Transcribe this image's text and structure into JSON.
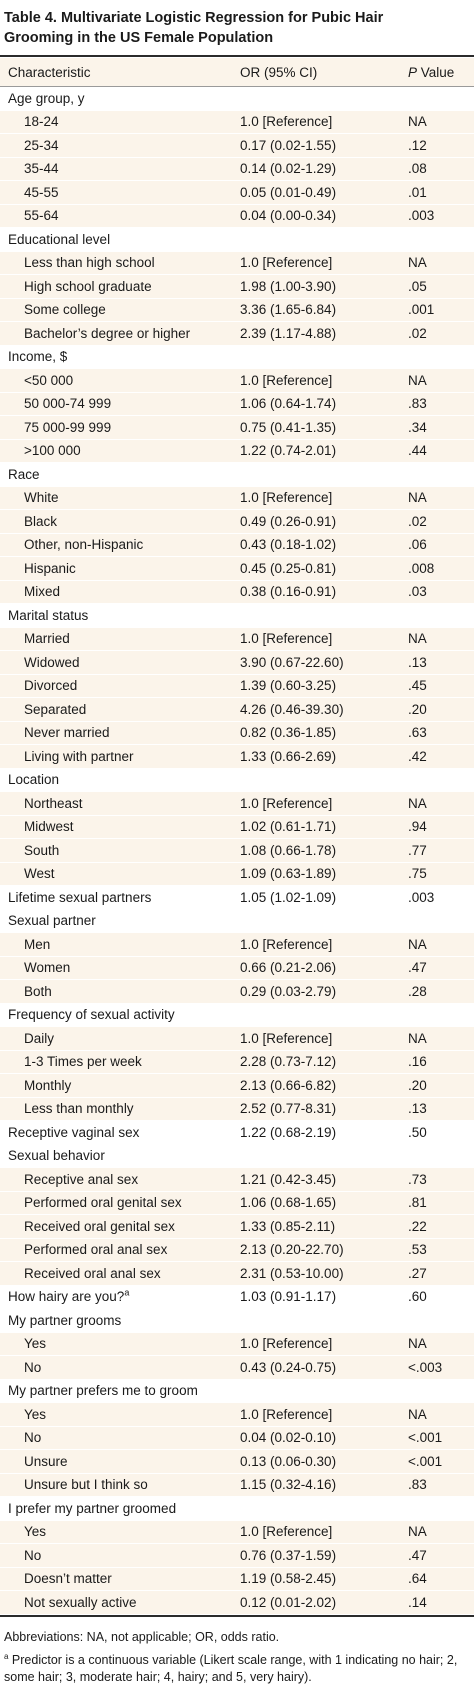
{
  "title": "Table 4. Multivariate Logistic Regression for Pubic Hair Grooming in the US Female Population",
  "headers": {
    "characteristic": "Characteristic",
    "or_ci": "OR (95% CI)",
    "p_italic": "P",
    "p_rest": " Value"
  },
  "rows": [
    {
      "type": "group",
      "label": "Age group, y",
      "or": "",
      "p": ""
    },
    {
      "type": "sub",
      "label": "18-24",
      "or": "1.0 [Reference]",
      "p": "NA"
    },
    {
      "type": "sub",
      "label": "25-34",
      "or": "0.17 (0.02-1.55)",
      "p": ".12"
    },
    {
      "type": "sub",
      "label": "35-44",
      "or": "0.14 (0.02-1.29)",
      "p": ".08"
    },
    {
      "type": "sub",
      "label": "45-55",
      "or": "0.05 (0.01-0.49)",
      "p": ".01"
    },
    {
      "type": "sub",
      "label": "55-64",
      "or": "0.04 (0.00-0.34)",
      "p": ".003"
    },
    {
      "type": "group",
      "label": "Educational level",
      "or": "",
      "p": ""
    },
    {
      "type": "sub",
      "label": "Less than high school",
      "or": "1.0 [Reference]",
      "p": "NA"
    },
    {
      "type": "sub",
      "label": "High school graduate",
      "or": "1.98 (1.00-3.90)",
      "p": ".05"
    },
    {
      "type": "sub",
      "label": "Some college",
      "or": "3.36 (1.65-6.84)",
      "p": ".001"
    },
    {
      "type": "sub",
      "label": "Bachelor’s degree or higher",
      "or": "2.39 (1.17-4.88)",
      "p": ".02"
    },
    {
      "type": "group",
      "label": "Income, $",
      "or": "",
      "p": ""
    },
    {
      "type": "sub",
      "label": "<50 000",
      "or": "1.0 [Reference]",
      "p": "NA"
    },
    {
      "type": "sub",
      "label": "50 000-74 999",
      "or": "1.06 (0.64-1.74)",
      "p": ".83"
    },
    {
      "type": "sub",
      "label": "75 000-99 999",
      "or": "0.75 (0.41-1.35)",
      "p": ".34"
    },
    {
      "type": "sub",
      "label": ">100 000",
      "or": "1.22 (0.74-2.01)",
      "p": ".44"
    },
    {
      "type": "group",
      "label": "Race",
      "or": "",
      "p": ""
    },
    {
      "type": "sub",
      "label": "White",
      "or": "1.0 [Reference]",
      "p": "NA"
    },
    {
      "type": "sub",
      "label": "Black",
      "or": "0.49 (0.26-0.91)",
      "p": ".02"
    },
    {
      "type": "sub",
      "label": "Other, non-Hispanic",
      "or": "0.43 (0.18-1.02)",
      "p": ".06"
    },
    {
      "type": "sub",
      "label": "Hispanic",
      "or": "0.45 (0.25-0.81)",
      "p": ".008"
    },
    {
      "type": "sub",
      "label": "Mixed",
      "or": "0.38 (0.16-0.91)",
      "p": ".03"
    },
    {
      "type": "group",
      "label": "Marital status",
      "or": "",
      "p": ""
    },
    {
      "type": "sub",
      "label": "Married",
      "or": "1.0 [Reference]",
      "p": "NA"
    },
    {
      "type": "sub",
      "label": "Widowed",
      "or": "3.90 (0.67-22.60)",
      "p": ".13"
    },
    {
      "type": "sub",
      "label": "Divorced",
      "or": "1.39 (0.60-3.25)",
      "p": ".45"
    },
    {
      "type": "sub",
      "label": "Separated",
      "or": "4.26 (0.46-39.30)",
      "p": ".20"
    },
    {
      "type": "sub",
      "label": "Never married",
      "or": "0.82 (0.36-1.85)",
      "p": ".63"
    },
    {
      "type": "sub",
      "label": "Living with partner",
      "or": "1.33 (0.66-2.69)",
      "p": ".42"
    },
    {
      "type": "group",
      "label": "Location",
      "or": "",
      "p": ""
    },
    {
      "type": "sub",
      "label": "Northeast",
      "or": "1.0 [Reference]",
      "p": "NA"
    },
    {
      "type": "sub",
      "label": "Midwest",
      "or": "1.02 (0.61-1.71)",
      "p": ".94"
    },
    {
      "type": "sub",
      "label": "South",
      "or": "1.08 (0.66-1.78)",
      "p": ".77"
    },
    {
      "type": "sub",
      "label": "West",
      "or": "1.09 (0.63-1.89)",
      "p": ".75"
    },
    {
      "type": "group",
      "label": "Lifetime sexual partners",
      "or": "1.05 (1.02-1.09)",
      "p": ".003"
    },
    {
      "type": "group",
      "label": "Sexual partner",
      "or": "",
      "p": ""
    },
    {
      "type": "sub",
      "label": "Men",
      "or": "1.0 [Reference]",
      "p": "NA"
    },
    {
      "type": "sub",
      "label": "Women",
      "or": "0.66 (0.21-2.06)",
      "p": ".47"
    },
    {
      "type": "sub",
      "label": "Both",
      "or": "0.29 (0.03-2.79)",
      "p": ".28"
    },
    {
      "type": "group",
      "label": "Frequency of sexual activity",
      "or": "",
      "p": ""
    },
    {
      "type": "sub",
      "label": "Daily",
      "or": "1.0 [Reference]",
      "p": "NA"
    },
    {
      "type": "sub",
      "label": "1-3 Times per week",
      "or": "2.28 (0.73-7.12)",
      "p": ".16"
    },
    {
      "type": "sub",
      "label": "Monthly",
      "or": "2.13 (0.66-6.82)",
      "p": ".20"
    },
    {
      "type": "sub",
      "label": "Less than monthly",
      "or": "2.52 (0.77-8.31)",
      "p": ".13"
    },
    {
      "type": "group",
      "label": "Receptive vaginal sex",
      "or": "1.22 (0.68-2.19)",
      "p": ".50"
    },
    {
      "type": "group",
      "label": "Sexual behavior",
      "or": "",
      "p": ""
    },
    {
      "type": "sub",
      "label": "Receptive anal sex",
      "or": "1.21 (0.42-3.45)",
      "p": ".73"
    },
    {
      "type": "sub",
      "label": "Performed oral genital sex",
      "or": "1.06 (0.68-1.65)",
      "p": ".81"
    },
    {
      "type": "sub",
      "label": "Received oral genital sex",
      "or": "1.33 (0.85-2.11)",
      "p": ".22"
    },
    {
      "type": "sub",
      "label": "Performed oral anal sex",
      "or": "2.13 (0.20-22.70)",
      "p": ".53"
    },
    {
      "type": "sub",
      "label": "Received oral anal sex",
      "or": "2.31 (0.53-10.00)",
      "p": ".27"
    },
    {
      "type": "group",
      "label": "How hairy are you?",
      "sup": "a",
      "or": "1.03 (0.91-1.17)",
      "p": ".60"
    },
    {
      "type": "group",
      "label": "My partner grooms",
      "or": "",
      "p": ""
    },
    {
      "type": "sub",
      "label": "Yes",
      "or": "1.0 [Reference]",
      "p": "NA"
    },
    {
      "type": "sub",
      "label": "No",
      "or": "0.43 (0.24-0.75)",
      "p": "<.003"
    },
    {
      "type": "group",
      "label": "My partner prefers me to groom",
      "or": "",
      "p": ""
    },
    {
      "type": "sub",
      "label": "Yes",
      "or": "1.0 [Reference]",
      "p": "NA"
    },
    {
      "type": "sub",
      "label": "No",
      "or": "0.04 (0.02-0.10)",
      "p": "<.001"
    },
    {
      "type": "sub",
      "label": "Unsure",
      "or": "0.13 (0.06-0.30)",
      "p": "<.001"
    },
    {
      "type": "sub",
      "label": "Unsure but I think so",
      "or": "1.15 (0.32-4.16)",
      "p": ".83"
    },
    {
      "type": "group",
      "label": "I prefer my partner groomed",
      "or": "",
      "p": ""
    },
    {
      "type": "sub",
      "label": "Yes",
      "or": "1.0 [Reference]",
      "p": "NA"
    },
    {
      "type": "sub",
      "label": "No",
      "or": "0.76 (0.37-1.59)",
      "p": ".47"
    },
    {
      "type": "sub",
      "label": "Doesn’t matter",
      "or": "1.19 (0.58-2.45)",
      "p": ".64"
    },
    {
      "type": "sub",
      "label": "Not sexually active",
      "or": "0.12 (0.01-2.02)",
      "p": ".14"
    }
  ],
  "footnotes": {
    "abbrev": "Abbreviations: NA, not applicable; OR, odds ratio.",
    "a_marker": "a",
    "a_text": " Predictor is a continuous variable (Likert scale range, with 1 indicating no hair; 2, some hair; 3, moderate hair; 4, hairy; and 5, very hairy)."
  }
}
